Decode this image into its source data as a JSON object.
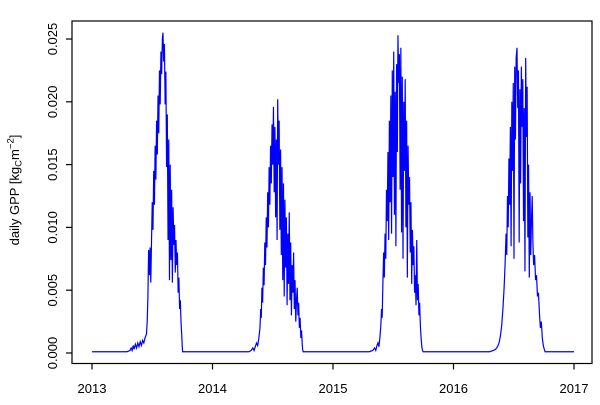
{
  "chart_data": {
    "type": "line",
    "title": "",
    "xlabel": "",
    "ylabel": "daily GPP [kgC m-2]",
    "ylabel_parts": {
      "prefix": "daily GPP [kg",
      "subscript": "C",
      "mid": "m",
      "superscript": "−2",
      "suffix": "]"
    },
    "series_name": "daily GPP",
    "line_color": "#0000ff",
    "axis_color": "#000000",
    "background": "#ffffff",
    "grid": false,
    "legend": null,
    "x_range": [
      2013,
      2017
    ],
    "y_range": [
      0,
      0.025
    ],
    "x_ticks": [
      2013,
      2014,
      2015,
      2016,
      2017
    ],
    "x_tick_labels": [
      "2013",
      "2014",
      "2015",
      "2016",
      "2017"
    ],
    "y_ticks": [
      0,
      0.005,
      0.01,
      0.015,
      0.02,
      0.025
    ],
    "y_tick_labels": [
      "0.000",
      "0.005",
      "0.010",
      "0.015",
      "0.020",
      "0.025"
    ],
    "points": [
      [
        2013.0,
        0.0001
      ],
      [
        2013.06,
        0.0001
      ],
      [
        2013.12,
        0.0001
      ],
      [
        2013.18,
        0.0001
      ],
      [
        2013.24,
        0.0001
      ],
      [
        2013.29,
        0.0001
      ],
      [
        2013.315,
        0.0002
      ],
      [
        2013.325,
        0.0004
      ],
      [
        2013.333,
        0.0002
      ],
      [
        2013.342,
        0.0006
      ],
      [
        2013.35,
        0.0003
      ],
      [
        2013.36,
        0.0007
      ],
      [
        2013.37,
        0.0004
      ],
      [
        2013.38,
        0.0008
      ],
      [
        2013.39,
        0.0005
      ],
      [
        2013.4,
        0.0009
      ],
      [
        2013.41,
        0.0006
      ],
      [
        2013.42,
        0.001
      ],
      [
        2013.43,
        0.0008
      ],
      [
        2013.44,
        0.0012
      ],
      [
        2013.452,
        0.0015
      ],
      [
        2013.458,
        0.0025
      ],
      [
        2013.464,
        0.0045
      ],
      [
        2013.47,
        0.0082
      ],
      [
        2013.476,
        0.0062
      ],
      [
        2013.482,
        0.0084
      ],
      [
        2013.488,
        0.0056
      ],
      [
        2013.494,
        0.009
      ],
      [
        2013.5,
        0.012
      ],
      [
        2013.506,
        0.0098
      ],
      [
        2013.512,
        0.0145
      ],
      [
        2013.518,
        0.0118
      ],
      [
        2013.524,
        0.0165
      ],
      [
        2013.53,
        0.0138
      ],
      [
        2013.536,
        0.0185
      ],
      [
        2013.542,
        0.0158
      ],
      [
        2013.548,
        0.0205
      ],
      [
        2013.554,
        0.0175
      ],
      [
        2013.56,
        0.0225
      ],
      [
        2013.566,
        0.0198
      ],
      [
        2013.572,
        0.024
      ],
      [
        2013.578,
        0.0222
      ],
      [
        2013.584,
        0.025
      ],
      [
        2013.589,
        0.0255
      ],
      [
        2013.595,
        0.0232
      ],
      [
        2013.601,
        0.0246
      ],
      [
        2013.607,
        0.0198
      ],
      [
        2013.613,
        0.0224
      ],
      [
        2013.619,
        0.0148
      ],
      [
        2013.625,
        0.019
      ],
      [
        2013.631,
        0.009
      ],
      [
        2013.637,
        0.017
      ],
      [
        2013.643,
        0.0058
      ],
      [
        2013.649,
        0.015
      ],
      [
        2013.655,
        0.0074
      ],
      [
        2013.661,
        0.013
      ],
      [
        2013.667,
        0.0056
      ],
      [
        2013.673,
        0.0116
      ],
      [
        2013.679,
        0.0086
      ],
      [
        2013.685,
        0.0102
      ],
      [
        2013.691,
        0.0064
      ],
      [
        2013.697,
        0.009
      ],
      [
        2013.703,
        0.007
      ],
      [
        2013.709,
        0.008
      ],
      [
        2013.715,
        0.0048
      ],
      [
        2013.721,
        0.006
      ],
      [
        2013.727,
        0.0035
      ],
      [
        2013.733,
        0.0042
      ],
      [
        2013.739,
        0.0024
      ],
      [
        2013.745,
        0.0014
      ],
      [
        2013.749,
        0.0005
      ],
      [
        2013.752,
        0.0001
      ],
      [
        2013.85,
        0.0001
      ],
      [
        2013.95,
        0.0001
      ],
      [
        2014.05,
        0.0001
      ],
      [
        2014.15,
        0.0001
      ],
      [
        2014.25,
        0.0001
      ],
      [
        2014.3,
        0.0001
      ],
      [
        2014.32,
        0.0002
      ],
      [
        2014.335,
        0.0004
      ],
      [
        2014.345,
        0.0002
      ],
      [
        2014.355,
        0.0005
      ],
      [
        2014.365,
        0.0008
      ],
      [
        2014.375,
        0.0006
      ],
      [
        2014.385,
        0.0012
      ],
      [
        2014.394,
        0.002
      ],
      [
        2014.4,
        0.0035
      ],
      [
        2014.405,
        0.0028
      ],
      [
        2014.41,
        0.0052
      ],
      [
        2014.416,
        0.004
      ],
      [
        2014.422,
        0.0068
      ],
      [
        2014.428,
        0.0054
      ],
      [
        2014.434,
        0.0088
      ],
      [
        2014.44,
        0.007
      ],
      [
        2014.446,
        0.0108
      ],
      [
        2014.452,
        0.0084
      ],
      [
        2014.458,
        0.0128
      ],
      [
        2014.464,
        0.01
      ],
      [
        2014.47,
        0.0148
      ],
      [
        2014.476,
        0.0118
      ],
      [
        2014.482,
        0.0165
      ],
      [
        2014.488,
        0.0135
      ],
      [
        2014.494,
        0.0182
      ],
      [
        2014.5,
        0.015
      ],
      [
        2014.506,
        0.0196
      ],
      [
        2014.512,
        0.0128
      ],
      [
        2014.518,
        0.018
      ],
      [
        2014.524,
        0.0108
      ],
      [
        2014.53,
        0.017
      ],
      [
        2014.536,
        0.009
      ],
      [
        2014.541,
        0.0202
      ],
      [
        2014.547,
        0.015
      ],
      [
        2014.553,
        0.0185
      ],
      [
        2014.559,
        0.0098
      ],
      [
        2014.565,
        0.0162
      ],
      [
        2014.571,
        0.0078
      ],
      [
        2014.577,
        0.0148
      ],
      [
        2014.583,
        0.0058
      ],
      [
        2014.589,
        0.0135
      ],
      [
        2014.595,
        0.0045
      ],
      [
        2014.601,
        0.0122
      ],
      [
        2014.607,
        0.0068
      ],
      [
        2014.613,
        0.0108
      ],
      [
        2014.619,
        0.0038
      ],
      [
        2014.625,
        0.0095
      ],
      [
        2014.631,
        0.0055
      ],
      [
        2014.637,
        0.0112
      ],
      [
        2014.643,
        0.0042
      ],
      [
        2014.649,
        0.0088
      ],
      [
        2014.655,
        0.003
      ],
      [
        2014.661,
        0.007
      ],
      [
        2014.667,
        0.0048
      ],
      [
        2014.673,
        0.008
      ],
      [
        2014.679,
        0.0035
      ],
      [
        2014.685,
        0.0058
      ],
      [
        2014.691,
        0.0025
      ],
      [
        2014.697,
        0.0042
      ],
      [
        2014.703,
        0.0052
      ],
      [
        2014.709,
        0.003
      ],
      [
        2014.715,
        0.004
      ],
      [
        2014.721,
        0.002
      ],
      [
        2014.727,
        0.0028
      ],
      [
        2014.733,
        0.0012
      ],
      [
        2014.739,
        0.0018
      ],
      [
        2014.744,
        0.0008
      ],
      [
        2014.748,
        0.0003
      ],
      [
        2014.752,
        0.0001
      ],
      [
        2014.85,
        0.0001
      ],
      [
        2014.95,
        0.0001
      ],
      [
        2015.05,
        0.0001
      ],
      [
        2015.15,
        0.0001
      ],
      [
        2015.25,
        0.0001
      ],
      [
        2015.3,
        0.0001
      ],
      [
        2015.33,
        0.0002
      ],
      [
        2015.345,
        0.0004
      ],
      [
        2015.355,
        0.0002
      ],
      [
        2015.365,
        0.0006
      ],
      [
        2015.373,
        0.0008
      ],
      [
        2015.381,
        0.0005
      ],
      [
        2015.389,
        0.0012
      ],
      [
        2015.397,
        0.0022
      ],
      [
        2015.403,
        0.0035
      ],
      [
        2015.408,
        0.0028
      ],
      [
        2015.414,
        0.0055
      ],
      [
        2015.42,
        0.008
      ],
      [
        2015.426,
        0.006
      ],
      [
        2015.432,
        0.0095
      ],
      [
        2015.438,
        0.0075
      ],
      [
        2015.444,
        0.013
      ],
      [
        2015.45,
        0.0105
      ],
      [
        2015.456,
        0.016
      ],
      [
        2015.462,
        0.009
      ],
      [
        2015.468,
        0.0185
      ],
      [
        2015.474,
        0.012
      ],
      [
        2015.48,
        0.0205
      ],
      [
        2015.486,
        0.0095
      ],
      [
        2015.492,
        0.0225
      ],
      [
        2015.498,
        0.014
      ],
      [
        2015.504,
        0.024
      ],
      [
        2015.51,
        0.011
      ],
      [
        2015.516,
        0.0208
      ],
      [
        2015.522,
        0.0085
      ],
      [
        2015.528,
        0.023
      ],
      [
        2015.534,
        0.016
      ],
      [
        2015.539,
        0.0253
      ],
      [
        2015.545,
        0.0215
      ],
      [
        2015.551,
        0.0238
      ],
      [
        2015.557,
        0.013
      ],
      [
        2015.563,
        0.0243
      ],
      [
        2015.569,
        0.0096
      ],
      [
        2015.575,
        0.022
      ],
      [
        2015.581,
        0.0075
      ],
      [
        2015.587,
        0.02
      ],
      [
        2015.593,
        0.0145
      ],
      [
        2015.599,
        0.0218
      ],
      [
        2015.605,
        0.01
      ],
      [
        2015.611,
        0.0185
      ],
      [
        2015.617,
        0.006
      ],
      [
        2015.623,
        0.0165
      ],
      [
        2015.629,
        0.0118
      ],
      [
        2015.635,
        0.014
      ],
      [
        2015.641,
        0.008
      ],
      [
        2015.647,
        0.012
      ],
      [
        2015.653,
        0.0055
      ],
      [
        2015.659,
        0.0098
      ],
      [
        2015.665,
        0.007
      ],
      [
        2015.671,
        0.0085
      ],
      [
        2015.677,
        0.0048
      ],
      [
        2015.683,
        0.0062
      ],
      [
        2015.689,
        0.0038
      ],
      [
        2015.695,
        0.009
      ],
      [
        2015.701,
        0.0042
      ],
      [
        2015.707,
        0.0055
      ],
      [
        2015.713,
        0.003
      ],
      [
        2015.719,
        0.004
      ],
      [
        2015.725,
        0.0022
      ],
      [
        2015.731,
        0.0012
      ],
      [
        2015.737,
        0.0005
      ],
      [
        2015.743,
        0.0002
      ],
      [
        2015.748,
        0.0001
      ],
      [
        2015.85,
        0.0001
      ],
      [
        2015.95,
        0.0001
      ],
      [
        2016.05,
        0.0001
      ],
      [
        2016.15,
        0.0001
      ],
      [
        2016.25,
        0.0001
      ],
      [
        2016.3,
        0.0001
      ],
      [
        2016.33,
        0.0002
      ],
      [
        2016.35,
        0.0003
      ],
      [
        2016.365,
        0.0005
      ],
      [
        2016.378,
        0.0008
      ],
      [
        2016.39,
        0.0014
      ],
      [
        2016.4,
        0.0022
      ],
      [
        2016.41,
        0.0035
      ],
      [
        2016.42,
        0.0052
      ],
      [
        2016.428,
        0.007
      ],
      [
        2016.436,
        0.0095
      ],
      [
        2016.442,
        0.0078
      ],
      [
        2016.448,
        0.0125
      ],
      [
        2016.454,
        0.01
      ],
      [
        2016.46,
        0.0155
      ],
      [
        2016.466,
        0.0118
      ],
      [
        2016.472,
        0.018
      ],
      [
        2016.478,
        0.0085
      ],
      [
        2016.484,
        0.02
      ],
      [
        2016.49,
        0.0145
      ],
      [
        2016.496,
        0.0215
      ],
      [
        2016.502,
        0.0075
      ],
      [
        2016.508,
        0.0228
      ],
      [
        2016.514,
        0.017
      ],
      [
        2016.52,
        0.0235
      ],
      [
        2016.527,
        0.0243
      ],
      [
        2016.533,
        0.0195
      ],
      [
        2016.539,
        0.0225
      ],
      [
        2016.545,
        0.0088
      ],
      [
        2016.551,
        0.021
      ],
      [
        2016.557,
        0.0135
      ],
      [
        2016.563,
        0.0228
      ],
      [
        2016.569,
        0.018
      ],
      [
        2016.575,
        0.0218
      ],
      [
        2016.581,
        0.0105
      ],
      [
        2016.587,
        0.0195
      ],
      [
        2016.593,
        0.0065
      ],
      [
        2016.599,
        0.0235
      ],
      [
        2016.605,
        0.0172
      ],
      [
        2016.611,
        0.0212
      ],
      [
        2016.617,
        0.0092
      ],
      [
        2016.623,
        0.015
      ],
      [
        2016.629,
        0.006
      ],
      [
        2016.635,
        0.0128
      ],
      [
        2016.641,
        0.0078
      ],
      [
        2016.647,
        0.0105
      ],
      [
        2016.653,
        0.0125
      ],
      [
        2016.659,
        0.0088
      ],
      [
        2016.665,
        0.007
      ],
      [
        2016.673,
        0.0078
      ],
      [
        2016.681,
        0.0058
      ],
      [
        2016.689,
        0.0062
      ],
      [
        2016.697,
        0.0045
      ],
      [
        2016.705,
        0.0048
      ],
      [
        2016.713,
        0.0032
      ],
      [
        2016.721,
        0.002
      ],
      [
        2016.729,
        0.0025
      ],
      [
        2016.737,
        0.0012
      ],
      [
        2016.745,
        0.0006
      ],
      [
        2016.753,
        0.0003
      ],
      [
        2016.76,
        0.0001
      ],
      [
        2016.85,
        0.0001
      ],
      [
        2016.93,
        0.0001
      ],
      [
        2017.0,
        0.0001
      ]
    ]
  }
}
